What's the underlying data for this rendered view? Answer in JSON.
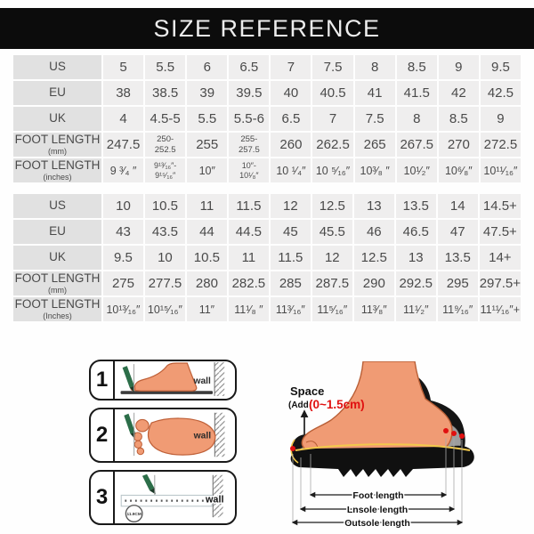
{
  "title": "SIZE REFERENCE",
  "colors": {
    "banner_bg": "#0c0c0c",
    "header_cell_bg": "#e1e1e1",
    "value_cell_bg": "#efeeee",
    "table_text": "#4a4a4a",
    "accent_red": "#e01010",
    "pencil_green": "#2c6e49",
    "foot_skin": "#f09b74",
    "sole_black": "#151515",
    "insole_gray": "#9d9d9d",
    "piping_yellow": "#f2c94c"
  },
  "tables": [
    {
      "rows": [
        {
          "label": "US",
          "sub": "",
          "values": [
            "5",
            "5.5",
            "6",
            "6.5",
            "7",
            "7.5",
            "8",
            "8.5",
            "9",
            "9.5"
          ]
        },
        {
          "label": "EU",
          "sub": "",
          "values": [
            "38",
            "38.5",
            "39",
            "39.5",
            "40",
            "40.5",
            "41",
            "41.5",
            "42",
            "42.5"
          ]
        },
        {
          "label": "UK",
          "sub": "",
          "values": [
            "4",
            "4.5-5",
            "5.5",
            "5.5-6",
            "6.5",
            "7",
            "7.5",
            "8",
            "8.5",
            "9"
          ]
        },
        {
          "label": "FOOT LENGTH",
          "sub": "(mm)",
          "values": [
            "247.5",
            "250-\n252.5",
            "255",
            "255-\n257.5",
            "260",
            "262.5",
            "265",
            "267.5",
            "270",
            "272.5"
          ]
        },
        {
          "label": "FOOT LENGTH",
          "sub": "(inches)",
          "values": [
            "9 ³⁄₄ ″",
            "9¹³⁄₁₆″-\n9¹⁵⁄₁₆″",
            "10″",
            "10″-\n10¹⁄₈″",
            "10 ¹⁄₄″",
            "10 ⁵⁄₁₆″",
            "10³⁄₈ ″",
            "10¹⁄₂″",
            "10⁶⁄₈″",
            "10¹¹⁄₁₆″"
          ]
        }
      ]
    },
    {
      "rows": [
        {
          "label": "US",
          "sub": "",
          "values": [
            "10",
            "10.5",
            "11",
            "11.5",
            "12",
            "12.5",
            "13",
            "13.5",
            "14",
            "14.5+"
          ]
        },
        {
          "label": "EU",
          "sub": "",
          "values": [
            "43",
            "43.5",
            "44",
            "44.5",
            "45",
            "45.5",
            "46",
            "46.5",
            "47",
            "47.5+"
          ]
        },
        {
          "label": "UK",
          "sub": "",
          "values": [
            "9.5",
            "10",
            "10.5",
            "11",
            "11.5",
            "12",
            "12.5",
            "13",
            "13.5",
            "14+"
          ]
        },
        {
          "label": "FOOT LENGTH",
          "sub": "(mm)",
          "values": [
            "275",
            "277.5",
            "280",
            "282.5",
            "285",
            "287.5",
            "290",
            "292.5",
            "295",
            "297.5+"
          ]
        },
        {
          "label": "FOOT LENGTH",
          "sub": "(Inches)",
          "values": [
            "10¹³⁄₁₆″",
            "10¹⁵⁄₁₆″",
            "11″",
            "11¹⁄₈ ″",
            "11³⁄₁₆″",
            "11⁵⁄₁₆″",
            "11³⁄₈″",
            "11¹⁄₂″",
            "11⁹⁄₁₆″",
            "11¹¹⁄₁₆″+"
          ]
        }
      ]
    }
  ],
  "steps": [
    {
      "number": "1",
      "wall_label": "wall"
    },
    {
      "number": "2",
      "wall_label": "wall"
    },
    {
      "number": "3",
      "wall_label": "wall",
      "note": "11.9CM"
    }
  ],
  "shoe": {
    "space_title": "Space",
    "space_add": "(Add",
    "space_value": "(0~1.5cm)",
    "measures": [
      "Foot length",
      "Lnsole length",
      "Outsole length"
    ]
  }
}
